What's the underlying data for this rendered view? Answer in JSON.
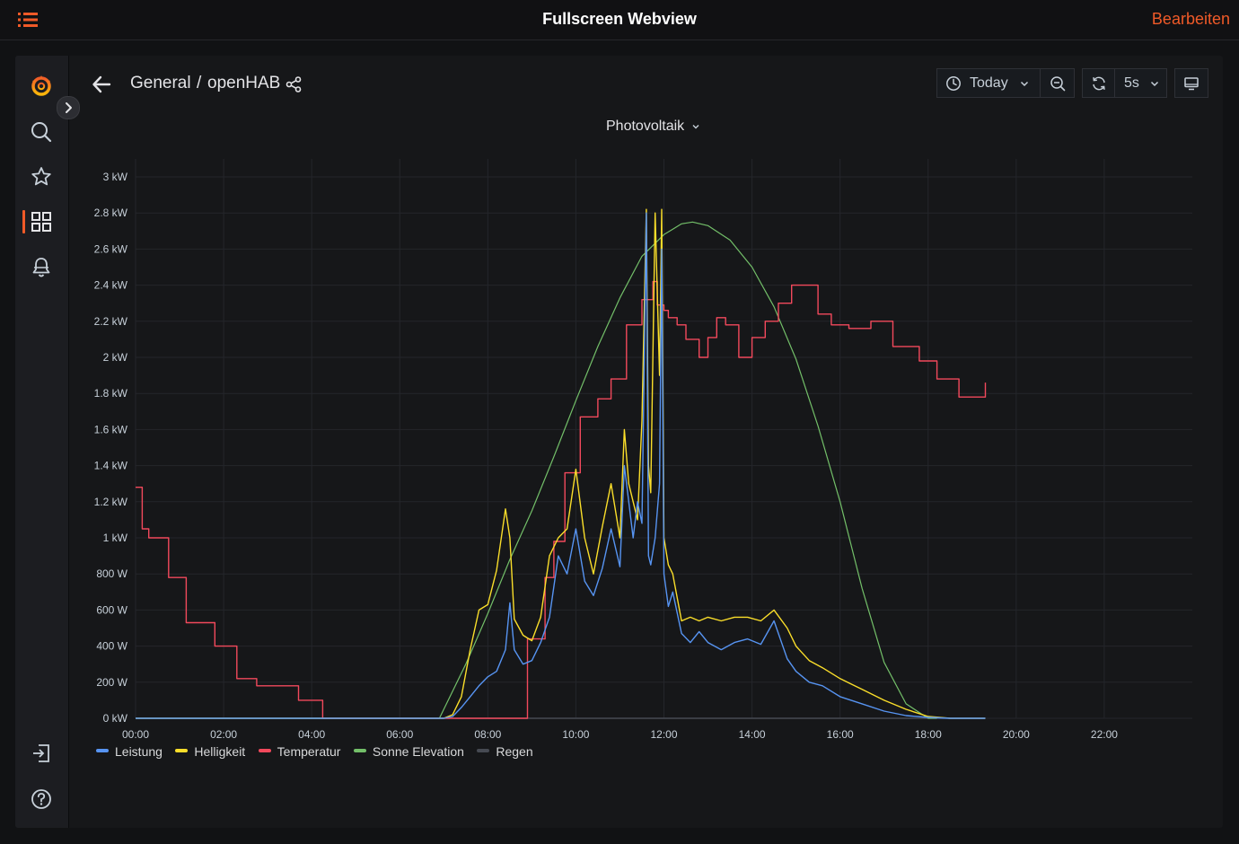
{
  "app": {
    "title": "Fullscreen Webview",
    "edit_label": "Bearbeiten",
    "accent": "#f05a28"
  },
  "sidebar": {
    "items": [
      {
        "name": "grafana-logo-icon"
      },
      {
        "name": "search-icon"
      },
      {
        "name": "star-icon"
      },
      {
        "name": "dashboards-grid-icon",
        "active": true
      },
      {
        "name": "bell-icon"
      }
    ],
    "bottom_items": [
      {
        "name": "sign-in-icon"
      },
      {
        "name": "help-icon"
      }
    ]
  },
  "navbar": {
    "breadcrumb_folder": "General",
    "breadcrumb_sep": "/",
    "breadcrumb_dashboard": "openHAB",
    "time_range": "Today",
    "refresh_interval": "5s"
  },
  "variable": {
    "label": "Photovoltaik"
  },
  "chart_data": {
    "type": "line",
    "y_tick_labels": [
      "0 kW",
      "200 W",
      "400 W",
      "600 W",
      "800 W",
      "1 kW",
      "1.2 kW",
      "1.4 kW",
      "1.6 kW",
      "1.8 kW",
      "2 kW",
      "2.2 kW",
      "2.4 kW",
      "2.6 kW",
      "2.8 kW",
      "3 kW"
    ],
    "y_ticks": [
      0,
      200,
      400,
      600,
      800,
      1000,
      1200,
      1400,
      1600,
      1800,
      2000,
      2200,
      2400,
      2600,
      2800,
      3000
    ],
    "ylim": [
      0,
      3000
    ],
    "x_tick_labels": [
      "00:00",
      "02:00",
      "04:00",
      "06:00",
      "08:00",
      "10:00",
      "12:00",
      "14:00",
      "16:00",
      "18:00",
      "20:00",
      "22:00"
    ],
    "xlim_hours": [
      0,
      24
    ],
    "grid": true,
    "legend_position": "bottom-left",
    "series": [
      {
        "name": "Leistung",
        "color": "#5794f2",
        "x": [
          7.0,
          7.2,
          7.4,
          7.6,
          7.8,
          8.0,
          8.2,
          8.4,
          8.5,
          8.6,
          8.8,
          9.0,
          9.2,
          9.4,
          9.6,
          9.8,
          10.0,
          10.2,
          10.4,
          10.6,
          10.8,
          11.0,
          11.1,
          11.2,
          11.3,
          11.4,
          11.5,
          11.6,
          11.65,
          11.7,
          11.8,
          11.9,
          11.95,
          12.0,
          12.1,
          12.2,
          12.4,
          12.6,
          12.8,
          13.0,
          13.3,
          13.6,
          13.9,
          14.2,
          14.5,
          14.8,
          15.0,
          15.3,
          15.6,
          16.0,
          16.5,
          17.0,
          17.5,
          18.0,
          18.5,
          19.0,
          19.3
        ],
        "y": [
          0,
          10,
          60,
          120,
          180,
          230,
          260,
          380,
          640,
          380,
          300,
          320,
          420,
          560,
          900,
          800,
          1050,
          760,
          680,
          830,
          1050,
          840,
          1400,
          1200,
          1000,
          1200,
          1080,
          2800,
          900,
          850,
          1000,
          1300,
          2600,
          800,
          620,
          700,
          470,
          420,
          480,
          420,
          380,
          420,
          440,
          410,
          540,
          330,
          260,
          200,
          180,
          120,
          80,
          40,
          15,
          5,
          0,
          0,
          0
        ],
        "values_unit": "W"
      },
      {
        "name": "Helligkeit",
        "color": "#fade2a",
        "x": [
          7.0,
          7.2,
          7.4,
          7.6,
          7.8,
          8.0,
          8.2,
          8.4,
          8.5,
          8.6,
          8.8,
          9.0,
          9.2,
          9.4,
          9.6,
          9.8,
          10.0,
          10.2,
          10.4,
          10.6,
          10.8,
          11.0,
          11.1,
          11.2,
          11.3,
          11.4,
          11.5,
          11.6,
          11.65,
          11.7,
          11.8,
          11.9,
          11.95,
          12.0,
          12.1,
          12.2,
          12.4,
          12.6,
          12.8,
          13.0,
          13.3,
          13.6,
          13.9,
          14.2,
          14.5,
          14.8,
          15.0,
          15.3,
          15.6,
          16.0,
          16.5,
          17.0,
          17.5,
          18.0,
          18.5,
          19.0,
          19.3
        ],
        "y": [
          0,
          20,
          120,
          380,
          600,
          630,
          820,
          1160,
          1000,
          550,
          460,
          430,
          560,
          900,
          1000,
          1050,
          1380,
          1000,
          800,
          1060,
          1300,
          1000,
          1600,
          1300,
          1200,
          1100,
          1650,
          2820,
          1400,
          1250,
          2800,
          1900,
          2820,
          1000,
          850,
          800,
          540,
          560,
          540,
          560,
          540,
          560,
          560,
          540,
          600,
          500,
          400,
          320,
          280,
          220,
          160,
          100,
          50,
          10,
          0,
          0,
          0
        ],
        "values_unit": "W"
      },
      {
        "name": "Temperatur",
        "color": "#f2495c",
        "x": [
          0.0,
          0.15,
          0.3,
          0.75,
          1.15,
          1.8,
          2.3,
          2.75,
          3.7,
          4.25,
          8.4,
          8.9,
          9.3,
          9.5,
          9.75,
          10.1,
          10.5,
          10.8,
          11.15,
          11.5,
          11.75,
          11.85,
          12.0,
          12.1,
          12.3,
          12.5,
          12.8,
          13.0,
          13.2,
          13.4,
          13.7,
          14.0,
          14.3,
          14.6,
          14.9,
          15.2,
          15.5,
          15.8,
          16.2,
          16.7,
          17.2,
          17.8,
          18.2,
          18.7,
          19.3
        ],
        "y": [
          1280,
          1050,
          1000,
          780,
          530,
          400,
          220,
          180,
          100,
          0,
          0,
          440,
          780,
          980,
          1360,
          1670,
          1770,
          1880,
          2180,
          2320,
          2420,
          2290,
          2260,
          2220,
          2180,
          2100,
          2000,
          2110,
          2220,
          2180,
          2000,
          2110,
          2200,
          2300,
          2400,
          2400,
          2240,
          2180,
          2160,
          2200,
          2060,
          1980,
          1880,
          1780,
          1860
        ],
        "values_unit": "°C-scaled"
      },
      {
        "name": "Sonne Elevation",
        "color": "#73bf69",
        "x": [
          6.9,
          7.5,
          8.0,
          8.5,
          9.0,
          9.5,
          10.0,
          10.5,
          11.0,
          11.5,
          12.0,
          12.4,
          12.65,
          13.0,
          13.5,
          14.0,
          14.5,
          15.0,
          15.5,
          16.0,
          16.5,
          17.0,
          17.5,
          18.0,
          18.2
        ],
        "y": [
          0,
          300,
          580,
          880,
          1150,
          1450,
          1760,
          2060,
          2330,
          2560,
          2680,
          2740,
          2750,
          2730,
          2650,
          2500,
          2280,
          1990,
          1620,
          1200,
          720,
          310,
          80,
          0,
          0
        ],
        "values_unit": "scaled"
      },
      {
        "name": "Regen",
        "color": "#464a52",
        "x": [
          0,
          19.3
        ],
        "y": [
          0,
          0
        ],
        "values_unit": "mm"
      }
    ]
  }
}
